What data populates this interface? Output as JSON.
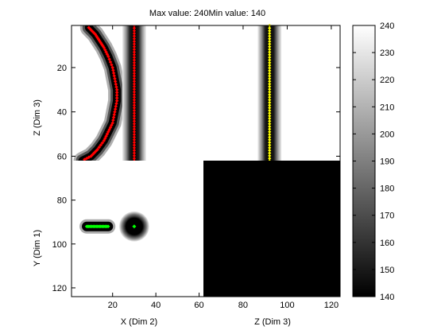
{
  "chart_data": {
    "type": "heatmap",
    "title": "Max value: 240Min value: 140",
    "colormap": "gray",
    "clim": [
      140,
      240
    ],
    "colorbar": {
      "ticks": [
        140,
        150,
        160,
        170,
        180,
        190,
        200,
        210,
        220,
        230,
        240
      ]
    },
    "panels": {
      "top_left": {
        "xlim": [
          1,
          62
        ],
        "ylim": [
          62,
          1
        ],
        "y_label": "Z (Dim 3)",
        "y_ticks": [
          20,
          40,
          60
        ],
        "x_ticks": [
          20,
          40,
          60
        ],
        "background": 240,
        "red_arc": {
          "color": "#ff0000",
          "points": [
            [
              9,
              2
            ],
            [
              12,
              5
            ],
            [
              14,
              8
            ],
            [
              16,
              11
            ],
            [
              18,
              15
            ],
            [
              20,
              20
            ],
            [
              21,
              25
            ],
            [
              22,
              30
            ],
            [
              22,
              35
            ],
            [
              21,
              40
            ],
            [
              20,
              45
            ],
            [
              18,
              49
            ],
            [
              16,
              53
            ],
            [
              13,
              57
            ],
            [
              10,
              60
            ],
            [
              6,
              62
            ]
          ]
        },
        "red_line": {
          "color": "#ff0000",
          "x": 30,
          "y_from": 1,
          "y_to": 63
        }
      },
      "top_right": {
        "xlim": [
          62,
          124
        ],
        "background": 240,
        "yellow_line": {
          "color": "#ffff00",
          "x": 92,
          "y_from": 1,
          "y_to": 63
        }
      },
      "bottom_left": {
        "xlim": [
          1,
          62
        ],
        "ylim": [
          124,
          62
        ],
        "x_label": "X (Dim 2)",
        "y_label": "Y (Dim 1)",
        "x_ticks": [
          20,
          40,
          60
        ],
        "y_ticks": [
          80,
          100,
          120
        ],
        "background": 240,
        "green_segment": {
          "color": "#00ff00",
          "x_from": 8,
          "x_to": 18,
          "y": 92
        },
        "circle_center": {
          "color": "#00ff00",
          "x": 30,
          "y": 92
        }
      },
      "bottom_right": {
        "xlim": [
          62,
          124
        ],
        "x_label": "Z (Dim 3)",
        "x_ticks": [
          80,
          100,
          120
        ],
        "fill": 140
      }
    }
  }
}
